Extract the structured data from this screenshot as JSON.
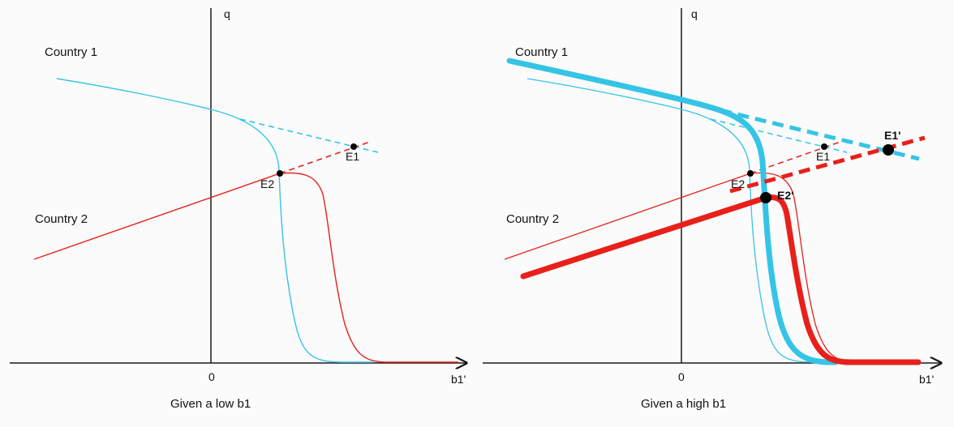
{
  "panels": [
    {
      "y_axis_label": "q",
      "x_axis_label": "b1'",
      "origin_label": "0",
      "country1_label": "Country 1",
      "country2_label": "Country 2",
      "e1_label": "E1",
      "e2_label": "E2",
      "caption": "Given a low b1"
    },
    {
      "y_axis_label": "q",
      "x_axis_label": "b1'",
      "origin_label": "0",
      "country1_label": "Country 1",
      "country2_label": "Country 2",
      "e1_label": "E1",
      "e2_label": "E2",
      "e1_new_label": "E1'",
      "e2_new_label": "E2'",
      "caption": "Given a high b1"
    }
  ],
  "colors": {
    "country1": "#35c4e6",
    "country2": "#e8201a",
    "axis": "#1a1a1a",
    "point": "#000000"
  }
}
